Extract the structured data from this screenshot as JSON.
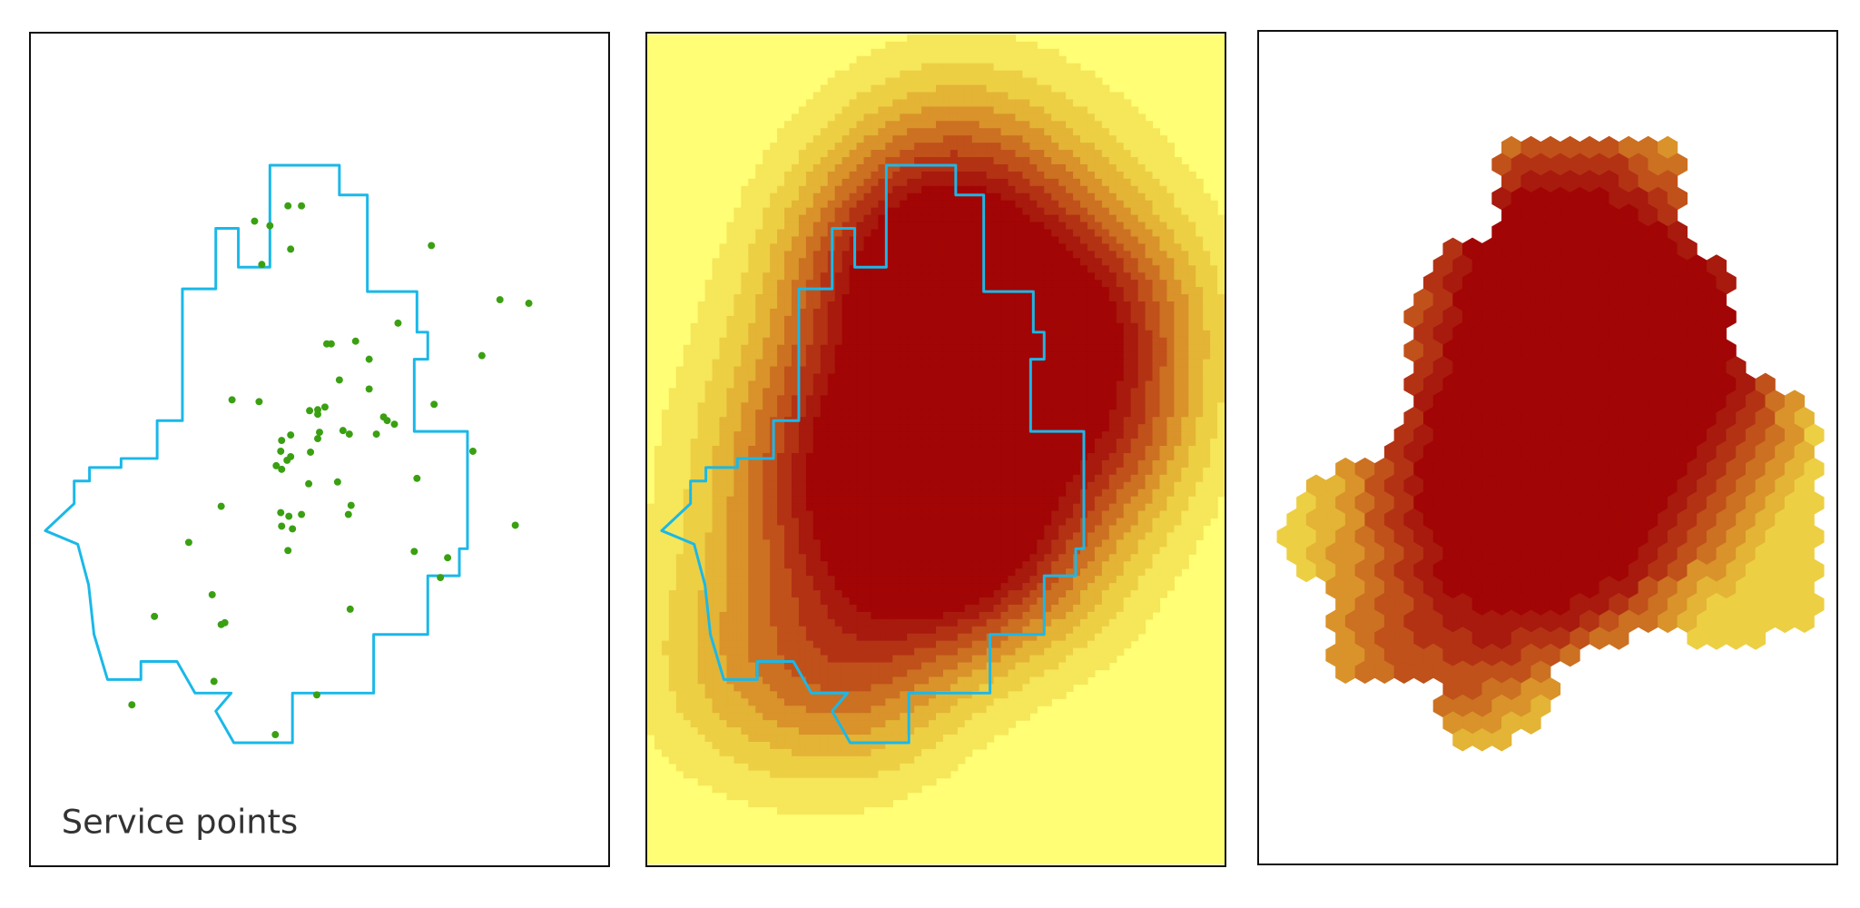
{
  "panels": [
    {
      "id": "points",
      "caption": "Service points"
    },
    {
      "id": "surface",
      "caption": ""
    },
    {
      "id": "hexbins",
      "caption": ""
    }
  ],
  "colors": {
    "boundary": "#1ab8e8",
    "points": "#3aa012",
    "ramp": [
      "#fffe75",
      "#f6e65a",
      "#edcf44",
      "#e3b435",
      "#d9932a",
      "#cc7022",
      "#c0511a",
      "#b33214",
      "#a71a0d",
      "#a20505"
    ],
    "border": "#111111"
  },
  "icons": [
    "service-point-marker"
  ]
}
